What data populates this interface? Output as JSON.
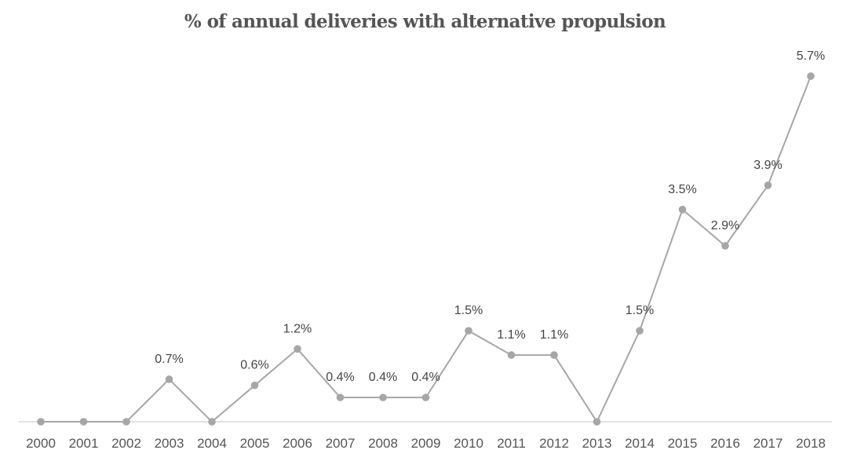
{
  "chart_data": {
    "type": "line",
    "title": "% of annual deliveries with alternative propulsion",
    "xlabel": "",
    "ylabel": "",
    "categories": [
      "2000",
      "2001",
      "2002",
      "2003",
      "2004",
      "2005",
      "2006",
      "2007",
      "2008",
      "2009",
      "2010",
      "2011",
      "2012",
      "2013",
      "2014",
      "2015",
      "2016",
      "2017",
      "2018"
    ],
    "series": [
      {
        "name": "",
        "values": [
          0,
          0,
          0,
          0.7,
          0,
          0.6,
          1.2,
          0.4,
          0.4,
          0.4,
          1.5,
          1.1,
          1.1,
          0,
          1.5,
          3.5,
          2.9,
          3.9,
          5.7
        ],
        "labels": [
          "",
          "",
          "",
          "0.7%",
          "",
          "0.6%",
          "1.2%",
          "0.4%",
          "0.4%",
          "0.4%",
          "1.5%",
          "1.1%",
          "1.1%",
          "",
          "1.5%",
          "3.5%",
          "2.9%",
          "3.9%",
          "5.7%"
        ]
      }
    ],
    "ylim": [
      0,
      6
    ],
    "grid": false,
    "legend": "none",
    "colors": {
      "line": "#a6a6a6",
      "marker": "#a6a6a6",
      "axis": "#d9d9d9",
      "text": "#555555"
    }
  }
}
